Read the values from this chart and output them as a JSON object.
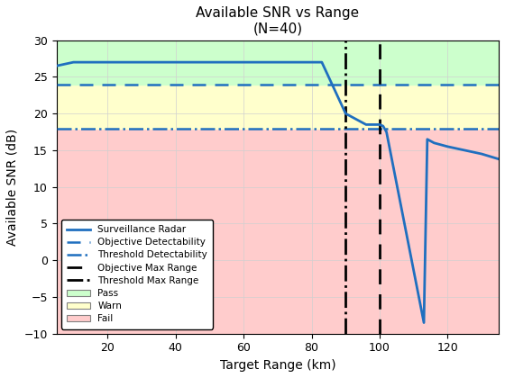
{
  "title": "Available SNR vs Range\n(N=40)",
  "xlabel": "Target Range (km)",
  "ylabel": "Available SNR (dB)",
  "xlim": [
    5,
    135
  ],
  "ylim": [
    -10,
    30
  ],
  "objective_detectability": 24.0,
  "threshold_detectability": 18.0,
  "objective_max_range": 100.0,
  "threshold_max_range": 90.0,
  "radar_x": [
    5,
    10,
    60,
    83,
    90,
    96,
    100,
    101,
    102,
    113,
    114,
    116,
    120,
    130,
    135
  ],
  "radar_y": [
    26.5,
    27.0,
    27.0,
    27.0,
    20.0,
    18.5,
    18.5,
    18.3,
    17.5,
    -8.5,
    16.5,
    16.0,
    15.5,
    14.5,
    13.8
  ],
  "pass_color": "#ccffcc",
  "warn_color": "#ffffcc",
  "fail_color": "#ffcccc",
  "line_color": "#1f6fbf",
  "background_color": "#ffffff",
  "xticks": [
    20,
    40,
    60,
    80,
    100,
    120
  ],
  "yticks": [
    -10,
    -5,
    0,
    5,
    10,
    15,
    20,
    25,
    30
  ]
}
